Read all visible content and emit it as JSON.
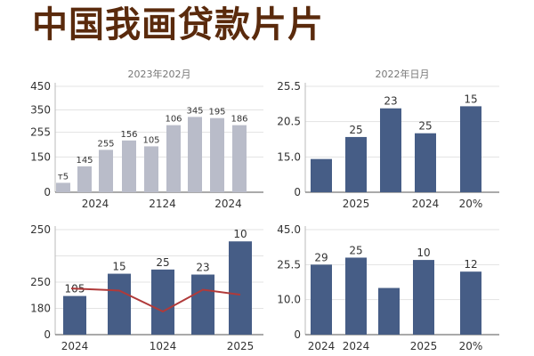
{
  "header": {
    "title": "中国我画贷款片片"
  },
  "chart_data": [
    {
      "type": "bar",
      "title": "2023年202月",
      "bar_color": "#b9bcc9",
      "ylim": [
        0,
        450
      ],
      "yticks": [
        "0",
        "150",
        "255",
        "350",
        "450"
      ],
      "ytick_values": [
        0,
        150,
        255,
        350,
        450
      ],
      "values": [
        40,
        110,
        180,
        220,
        195,
        285,
        320,
        315,
        285
      ],
      "data_labels": [
        "т5",
        "145",
        "255",
        "156",
        "105",
        "106",
        "345",
        "195",
        "186"
      ],
      "xtick_labels": [
        {
          "after_bar": 1,
          "text": "2024"
        },
        {
          "after_bar": 4,
          "text": "2124"
        },
        {
          "after_bar": 7,
          "text": "2024"
        }
      ]
    },
    {
      "type": "bar",
      "title": "2022年日月",
      "bar_color": "#465d86",
      "ylim": [
        0,
        25.5
      ],
      "yticks": [
        "0",
        "15.0",
        "20.5",
        "25.5"
      ],
      "ytick_values": [
        0,
        8.5,
        17,
        25.5
      ],
      "values": [
        8,
        13.3,
        20.2,
        14.2,
        20.7
      ],
      "data_labels": [
        "",
        "25",
        "23",
        "25",
        "15"
      ],
      "xtick_labels": [
        {
          "at_bar": 1,
          "text": "2025"
        },
        {
          "at_bar": 3,
          "text": "2024"
        },
        {
          "at_bar": 4,
          "text": "20%"
        }
      ]
    },
    {
      "type": "bar",
      "bar_color": "#465d86",
      "line_color": "#b03a3a",
      "ylim": [
        0,
        250
      ],
      "yticks": [
        "0",
        "180",
        "250",
        "250"
      ],
      "ytick_values": [
        0,
        62.5,
        125,
        187.5,
        250
      ],
      "ytick_labelled": [
        0,
        62.5,
        125,
        250
      ],
      "values": [
        92,
        145,
        155,
        143,
        222
      ],
      "line": [
        110,
        105,
        55,
        107,
        95
      ],
      "data_labels": [
        "105",
        "15",
        "25",
        "23",
        "10"
      ],
      "xtick_labels": [
        {
          "at_bar": 0,
          "text": "2024"
        },
        {
          "at_bar": 2,
          "text": "1024"
        },
        {
          "at_bar": 4,
          "text": "2025"
        }
      ]
    },
    {
      "type": "bar",
      "bar_color": "#465d86",
      "ylim": [
        0,
        45
      ],
      "yticks": [
        "0",
        "10.0",
        "25.5",
        "45.0"
      ],
      "ytick_values": [
        0,
        15,
        30,
        45
      ],
      "values": [
        30,
        33,
        20,
        32,
        27
      ],
      "data_labels": [
        "29",
        "25",
        "",
        "10",
        "12"
      ],
      "xtick_labels": [
        {
          "at_bar": 0,
          "text": "2024"
        },
        {
          "at_bar": 1,
          "text": "2024"
        },
        {
          "at_bar": 3,
          "text": "2025"
        },
        {
          "at_bar": 4,
          "text": "20%"
        }
      ]
    }
  ]
}
